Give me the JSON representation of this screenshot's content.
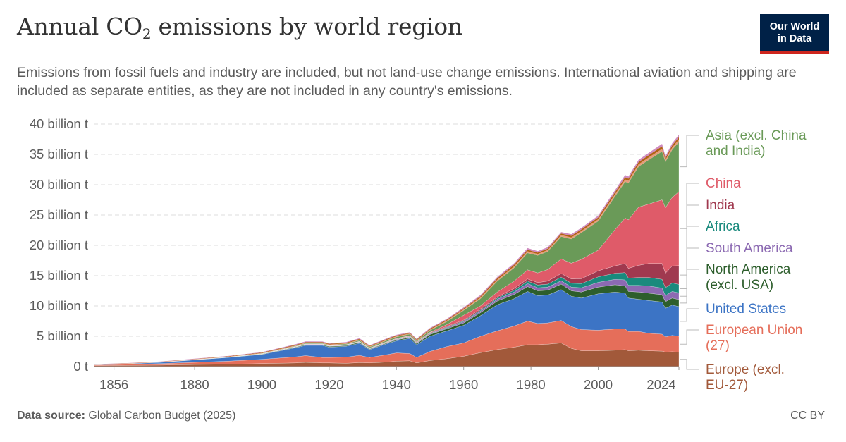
{
  "header": {
    "title_main": "Annual CO",
    "title_sub": "2",
    "title_rest": " emissions by world region",
    "subtitle": "Emissions from fossil fuels and industry are included, but not land-use change emissions. International aviation and shipping are included as separate entities, as they are not included in any country's emissions."
  },
  "logo": {
    "line1": "Our World",
    "line2": "in Data"
  },
  "footer": {
    "source_label": "Data source:",
    "source_value": "Global Carbon Budget (2025)",
    "license": "CC BY"
  },
  "chart_data": {
    "type": "area",
    "stacked": true,
    "unit": "billion t",
    "x_ticks": [
      "1856",
      "1880",
      "1900",
      "1920",
      "1940",
      "1960",
      "1980",
      "2000",
      "2024"
    ],
    "y_ticks": [
      "0 t",
      "5 billion t",
      "10 billion t",
      "15 billion t",
      "20 billion t",
      "25 billion t",
      "30 billion t",
      "35 billion t",
      "40 billion t"
    ],
    "xlim": [
      1850,
      2024
    ],
    "ylim": [
      0,
      40
    ],
    "grid": "horizontal dashed",
    "legend_placement": "right",
    "years": [
      1850,
      1860,
      1870,
      1880,
      1890,
      1900,
      1910,
      1913,
      1918,
      1920,
      1925,
      1929,
      1932,
      1937,
      1940,
      1944,
      1946,
      1950,
      1955,
      1960,
      1965,
      1970,
      1975,
      1979,
      1982,
      1985,
      1989,
      1992,
      1995,
      2000,
      2005,
      2008,
      2009,
      2012,
      2015,
      2019,
      2020,
      2022,
      2024
    ],
    "series": [
      {
        "name": "Europe (excl. EU-27)",
        "label_lines": [
          "Europe (excl.",
          "EU-27)"
        ],
        "color": "#a2593a",
        "values": [
          0.15,
          0.2,
          0.25,
          0.35,
          0.4,
          0.5,
          0.6,
          0.7,
          0.6,
          0.6,
          0.55,
          0.65,
          0.6,
          0.75,
          0.9,
          0.95,
          0.6,
          1.0,
          1.3,
          1.7,
          2.3,
          2.8,
          3.2,
          3.6,
          3.6,
          3.7,
          3.9,
          3.0,
          2.6,
          2.6,
          2.7,
          2.8,
          2.6,
          2.7,
          2.6,
          2.55,
          2.4,
          2.45,
          2.4
        ]
      },
      {
        "name": "European Union (27)",
        "label_lines": [
          "European Union",
          "(27)"
        ],
        "color": "#e56e5a",
        "values": [
          0.12,
          0.18,
          0.25,
          0.35,
          0.5,
          0.7,
          1.0,
          1.1,
          0.9,
          0.9,
          1.0,
          1.2,
          0.9,
          1.2,
          1.35,
          1.2,
          0.9,
          1.5,
          2.0,
          2.2,
          2.7,
          3.1,
          3.5,
          3.9,
          3.5,
          3.5,
          3.7,
          3.6,
          3.5,
          3.4,
          3.5,
          3.4,
          3.2,
          3.1,
          2.9,
          2.8,
          2.5,
          2.7,
          2.6
        ]
      },
      {
        "name": "United States",
        "label_lines": [
          "United States"
        ],
        "color": "#3c74c5",
        "values": [
          0.05,
          0.1,
          0.2,
          0.4,
          0.6,
          0.8,
          1.5,
          1.7,
          2.0,
          1.7,
          1.8,
          2.0,
          1.3,
          1.8,
          2.0,
          2.5,
          2.1,
          2.5,
          2.6,
          2.9,
          3.4,
          4.3,
          4.5,
          4.9,
          4.6,
          4.6,
          5.1,
          5.0,
          5.2,
          6.0,
          6.1,
          5.9,
          5.5,
          5.3,
          5.4,
          5.3,
          4.7,
          5.0,
          4.9
        ]
      },
      {
        "name": "North America (excl. USA)",
        "label_lines": [
          "North America",
          "(excl. USA)"
        ],
        "color": "#2d5e2c",
        "values": [
          0.01,
          0.01,
          0.02,
          0.03,
          0.04,
          0.06,
          0.1,
          0.12,
          0.12,
          0.12,
          0.12,
          0.15,
          0.1,
          0.12,
          0.14,
          0.18,
          0.18,
          0.3,
          0.35,
          0.4,
          0.5,
          0.6,
          0.7,
          0.8,
          0.8,
          0.8,
          0.9,
          0.9,
          1.0,
          1.1,
          1.2,
          1.2,
          1.1,
          1.2,
          1.2,
          1.2,
          1.1,
          1.15,
          1.15
        ]
      },
      {
        "name": "South America",
        "label_lines": [
          "South America"
        ],
        "color": "#8c6ab2",
        "values": [
          0.0,
          0.01,
          0.01,
          0.02,
          0.02,
          0.03,
          0.04,
          0.05,
          0.04,
          0.05,
          0.05,
          0.06,
          0.05,
          0.06,
          0.08,
          0.08,
          0.09,
          0.12,
          0.16,
          0.2,
          0.25,
          0.3,
          0.4,
          0.5,
          0.5,
          0.5,
          0.55,
          0.6,
          0.7,
          0.8,
          0.9,
          1.0,
          1.0,
          1.1,
          1.2,
          1.1,
          1.0,
          1.1,
          1.1
        ]
      },
      {
        "name": "Africa",
        "label_lines": [
          "Africa"
        ],
        "color": "#1a8a7d",
        "values": [
          0.0,
          0.0,
          0.0,
          0.0,
          0.01,
          0.01,
          0.02,
          0.02,
          0.02,
          0.02,
          0.03,
          0.03,
          0.03,
          0.04,
          0.05,
          0.05,
          0.06,
          0.08,
          0.1,
          0.12,
          0.16,
          0.2,
          0.3,
          0.4,
          0.45,
          0.5,
          0.6,
          0.65,
          0.7,
          0.9,
          1.0,
          1.2,
          1.2,
          1.3,
          1.4,
          1.45,
          1.3,
          1.4,
          1.4
        ]
      },
      {
        "name": "India",
        "label_lines": [
          "India"
        ],
        "color": "#a0394f",
        "values": [
          0.0,
          0.0,
          0.01,
          0.01,
          0.01,
          0.02,
          0.03,
          0.04,
          0.04,
          0.04,
          0.04,
          0.05,
          0.05,
          0.06,
          0.07,
          0.08,
          0.08,
          0.1,
          0.12,
          0.15,
          0.2,
          0.2,
          0.3,
          0.35,
          0.4,
          0.5,
          0.6,
          0.7,
          0.8,
          1.0,
          1.2,
          1.5,
          1.6,
          2.0,
          2.3,
          2.6,
          2.4,
          2.8,
          3.1
        ]
      },
      {
        "name": "China",
        "label_lines": [
          "China"
        ],
        "color": "#df5b69",
        "values": [
          0.0,
          0.0,
          0.0,
          0.0,
          0.0,
          0.01,
          0.02,
          0.02,
          0.02,
          0.02,
          0.03,
          0.03,
          0.04,
          0.05,
          0.06,
          0.07,
          0.06,
          0.08,
          0.3,
          0.8,
          0.5,
          0.8,
          1.2,
          1.5,
          1.6,
          1.9,
          2.4,
          2.6,
          3.2,
          3.4,
          6.0,
          7.5,
          8.0,
          9.6,
          9.8,
          10.5,
          10.8,
          11.3,
          12.2
        ]
      },
      {
        "name": "Asia (excl. China and India)",
        "label_lines": [
          "Asia (excl. China",
          "and India)"
        ],
        "color": "#6a9a58",
        "values": [
          0.0,
          0.0,
          0.01,
          0.02,
          0.03,
          0.05,
          0.08,
          0.1,
          0.1,
          0.1,
          0.12,
          0.15,
          0.15,
          0.2,
          0.25,
          0.25,
          0.15,
          0.3,
          0.5,
          0.8,
          1.2,
          1.8,
          2.2,
          2.8,
          2.9,
          3.0,
          3.7,
          4.0,
          4.4,
          4.8,
          5.5,
          6.0,
          6.1,
          6.7,
          7.3,
          8.0,
          7.6,
          7.9,
          8.2
        ]
      }
    ],
    "minor_series_colors": [
      "#e59d7a",
      "#b16214",
      "#cf8bbf"
    ],
    "minor_series_values": [
      0.06,
      0.08,
      0.1,
      0.12,
      0.15,
      0.2,
      0.3,
      0.3,
      0.3,
      0.3,
      0.3,
      0.35,
      0.3,
      0.35,
      0.35,
      0.3,
      0.35,
      0.4,
      0.45,
      0.5,
      0.6,
      0.7,
      0.75,
      0.8,
      0.7,
      0.7,
      0.75,
      0.8,
      0.8,
      0.9,
      1.0,
      1.1,
      1.05,
      1.1,
      1.15,
      1.25,
      0.9,
      1.05,
      1.2
    ]
  }
}
